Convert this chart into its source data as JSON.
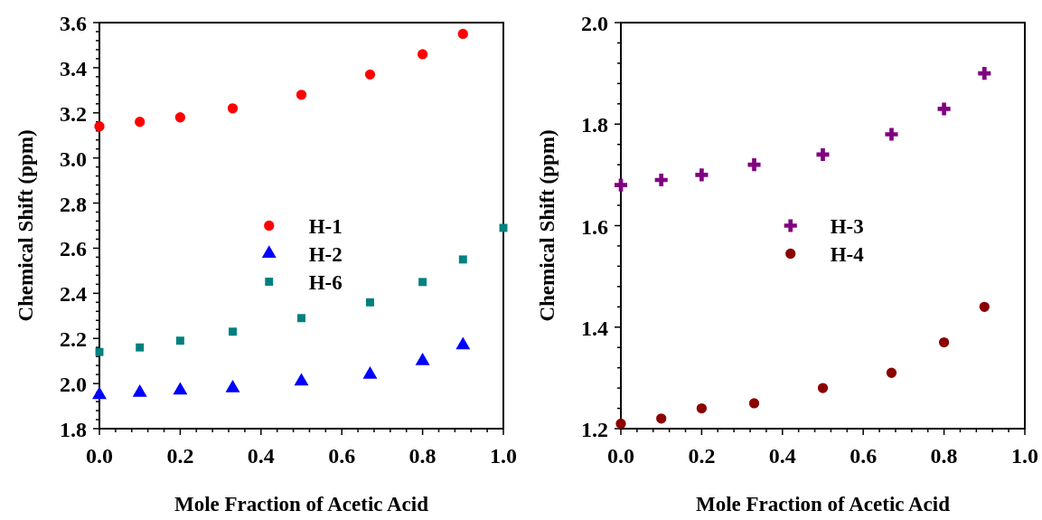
{
  "chart_data": [
    {
      "type": "scatter",
      "xlabel": "Mole Fraction of Acetic Acid",
      "ylabel": "Chemical Shift (ppm)",
      "legend": "center",
      "xlim": [
        0,
        1
      ],
      "ylim": [
        1.8,
        3.6
      ],
      "xticks": [
        {
          "value": 0,
          "label": "0.0"
        },
        {
          "value": 0.04,
          "label": null
        },
        {
          "value": 0.08,
          "label": null
        },
        {
          "value": 0.12,
          "label": null
        },
        {
          "value": 0.16,
          "label": null
        },
        0.2,
        {
          "value": 0.24,
          "label": null
        },
        {
          "value": 0.28,
          "label": null
        },
        {
          "value": 0.32,
          "label": null
        },
        {
          "value": 0.36,
          "label": null
        },
        0.4,
        {
          "value": 0.44,
          "label": null
        },
        {
          "value": 0.48,
          "label": null
        },
        {
          "value": 0.52,
          "label": null
        },
        {
          "value": 0.56,
          "label": null
        },
        0.6,
        {
          "value": 0.64,
          "label": null
        },
        {
          "value": 0.68,
          "label": null
        },
        {
          "value": 0.72,
          "label": null
        },
        {
          "value": 0.76,
          "label": null
        },
        0.8,
        {
          "value": 0.84,
          "label": null
        },
        {
          "value": 0.88,
          "label": null
        },
        {
          "value": 0.92,
          "label": null
        },
        {
          "value": 0.96,
          "label": null
        },
        {
          "value": 1,
          "label": "1.0"
        }
      ],
      "yticks": [
        1.8,
        {
          "value": 1.84,
          "label": null
        },
        {
          "value": 1.88,
          "label": null
        },
        {
          "value": 1.92,
          "label": null
        },
        {
          "value": 1.96,
          "label": null
        },
        {
          "value": 2,
          "label": "2.0"
        },
        {
          "value": 2.04,
          "label": null
        },
        {
          "value": 2.08,
          "label": null
        },
        {
          "value": 2.12,
          "label": null
        },
        {
          "value": 2.16,
          "label": null
        },
        2.2,
        {
          "value": 2.24,
          "label": null
        },
        {
          "value": 2.28,
          "label": null
        },
        {
          "value": 2.32,
          "label": null
        },
        {
          "value": 2.36,
          "label": null
        },
        2.4,
        {
          "value": 2.44,
          "label": null
        },
        {
          "value": 2.48,
          "label": null
        },
        {
          "value": 2.52,
          "label": null
        },
        {
          "value": 2.56,
          "label": null
        },
        2.6,
        {
          "value": 2.64,
          "label": null
        },
        {
          "value": 2.68,
          "label": null
        },
        {
          "value": 2.72,
          "label": null
        },
        {
          "value": 2.76,
          "label": null
        },
        2.8,
        {
          "value": 2.84,
          "label": null
        },
        {
          "value": 2.88,
          "label": null
        },
        {
          "value": 2.92,
          "label": null
        },
        {
          "value": 2.96,
          "label": null
        },
        {
          "value": 3,
          "label": "3.0"
        },
        {
          "value": 3.04,
          "label": null
        },
        {
          "value": 3.08,
          "label": null
        },
        {
          "value": 3.12,
          "label": null
        },
        {
          "value": 3.16,
          "label": null
        },
        3.2,
        {
          "value": 3.24,
          "label": null
        },
        {
          "value": 3.28,
          "label": null
        },
        {
          "value": 3.32,
          "label": null
        },
        {
          "value": 3.36,
          "label": null
        },
        3.4,
        {
          "value": 3.44,
          "label": null
        },
        {
          "value": 3.48,
          "label": null
        },
        {
          "value": 3.52,
          "label": null
        },
        {
          "value": 3.56,
          "label": null
        },
        3.6
      ],
      "series": [
        {
          "name": "H-1",
          "color": "#ff0000",
          "marker": "circle",
          "x": [
            0,
            0.1,
            0.2,
            0.33,
            0.5,
            0.67,
            0.8,
            0.9
          ],
          "values": [
            3.14,
            3.16,
            3.18,
            3.22,
            3.28,
            3.37,
            3.46,
            3.55
          ]
        },
        {
          "name": "H-2",
          "color": "#0000ff",
          "marker": "triangle",
          "x": [
            0,
            0.1,
            0.2,
            0.33,
            0.5,
            0.67,
            0.8,
            0.9
          ],
          "values": [
            1.95,
            1.96,
            1.97,
            1.98,
            2.01,
            2.04,
            2.1,
            2.17
          ]
        },
        {
          "name": "H-6",
          "color": "#008080",
          "marker": "square",
          "x": [
            0,
            0.1,
            0.2,
            0.33,
            0.5,
            0.67,
            0.8,
            0.9,
            1
          ],
          "values": [
            2.14,
            2.16,
            2.19,
            2.23,
            2.29,
            2.36,
            2.45,
            2.55,
            2.69
          ]
        }
      ]
    },
    {
      "type": "scatter",
      "xlabel": "Mole Fraction of Acetic Acid",
      "ylabel": "Chemical Shift (ppm)",
      "legend": "center",
      "xlim": [
        0,
        1
      ],
      "ylim": [
        1.2,
        2
      ],
      "xticks": [
        {
          "value": 0,
          "label": "0.0"
        },
        {
          "value": 0.04,
          "label": null
        },
        {
          "value": 0.08,
          "label": null
        },
        {
          "value": 0.12,
          "label": null
        },
        {
          "value": 0.16,
          "label": null
        },
        0.2,
        {
          "value": 0.24,
          "label": null
        },
        {
          "value": 0.28,
          "label": null
        },
        {
          "value": 0.32,
          "label": null
        },
        {
          "value": 0.36,
          "label": null
        },
        0.4,
        {
          "value": 0.44,
          "label": null
        },
        {
          "value": 0.48,
          "label": null
        },
        {
          "value": 0.52,
          "label": null
        },
        {
          "value": 0.56,
          "label": null
        },
        0.6,
        {
          "value": 0.64,
          "label": null
        },
        {
          "value": 0.68,
          "label": null
        },
        {
          "value": 0.72,
          "label": null
        },
        {
          "value": 0.76,
          "label": null
        },
        0.8,
        {
          "value": 0.84,
          "label": null
        },
        {
          "value": 0.88,
          "label": null
        },
        {
          "value": 0.92,
          "label": null
        },
        {
          "value": 0.96,
          "label": null
        },
        {
          "value": 1,
          "label": "1.0"
        }
      ],
      "yticks": [
        1.2,
        {
          "value": 1.24,
          "label": null
        },
        {
          "value": 1.28,
          "label": null
        },
        {
          "value": 1.32,
          "label": null
        },
        {
          "value": 1.36,
          "label": null
        },
        1.4,
        {
          "value": 1.44,
          "label": null
        },
        {
          "value": 1.48,
          "label": null
        },
        {
          "value": 1.52,
          "label": null
        },
        {
          "value": 1.56,
          "label": null
        },
        1.6,
        {
          "value": 1.64,
          "label": null
        },
        {
          "value": 1.68,
          "label": null
        },
        {
          "value": 1.72,
          "label": null
        },
        {
          "value": 1.76,
          "label": null
        },
        1.8,
        {
          "value": 1.84,
          "label": null
        },
        {
          "value": 1.88,
          "label": null
        },
        {
          "value": 1.92,
          "label": null
        },
        {
          "value": 1.96,
          "label": null
        },
        {
          "value": 2,
          "label": "2.0"
        }
      ],
      "series": [
        {
          "name": "H-3",
          "color": "#800080",
          "marker": "cross",
          "x": [
            0,
            0.1,
            0.2,
            0.33,
            0.5,
            0.67,
            0.8,
            0.9
          ],
          "values": [
            1.68,
            1.69,
            1.7,
            1.72,
            1.74,
            1.78,
            1.83,
            1.9
          ]
        },
        {
          "name": "H-4",
          "color": "#8b0000",
          "marker": "circle",
          "x": [
            0,
            0.1,
            0.2,
            0.33,
            0.5,
            0.67,
            0.8,
            0.9
          ],
          "values": [
            1.21,
            1.22,
            1.24,
            1.25,
            1.28,
            1.31,
            1.37,
            1.44
          ]
        }
      ]
    }
  ]
}
